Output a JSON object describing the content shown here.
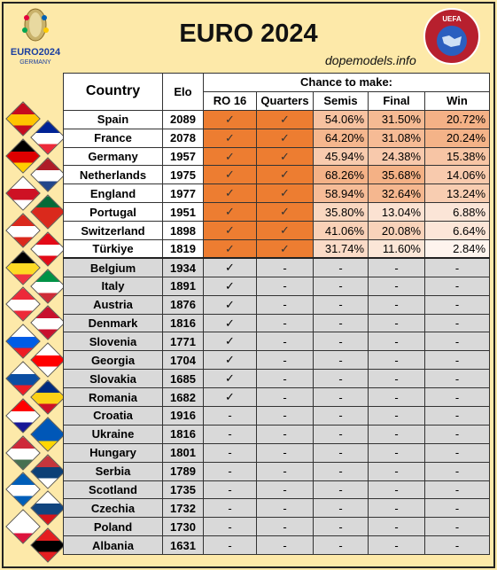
{
  "header": {
    "title": "EURO 2024",
    "site": "dopemodels.info",
    "euro_logo_text": [
      "EURO2024",
      "GERMANY"
    ],
    "uefa_logo_text": "UEFA"
  },
  "columns": {
    "country": "Country",
    "elo": "Elo",
    "group": "Chance to make:",
    "stages": [
      "RO 16",
      "Quarters",
      "Semis",
      "Final",
      "Win"
    ]
  },
  "colors": {
    "background": "#fde9a9",
    "advanced": "#ed7d31",
    "eliminated": "#d9d9d9",
    "heat_low": "#ffffff",
    "heat_high": "#f4a06a"
  },
  "chart_data": {
    "type": "table",
    "title": "EURO 2024",
    "columns": [
      "Country",
      "Elo",
      "RO 16",
      "Quarters",
      "Semis",
      "Final",
      "Win"
    ],
    "check_mark": "✓",
    "dash": "-",
    "rows": [
      {
        "country": "Spain",
        "elo": "2089",
        "ro16": "✓",
        "quarters": "✓",
        "semis": "54.06%",
        "final": "31.50%",
        "win": "20.72%",
        "status": "alive",
        "flag": [
          "#c60b1e",
          "#ffc400",
          "#c60b1e"
        ]
      },
      {
        "country": "France",
        "elo": "2078",
        "ro16": "✓",
        "quarters": "✓",
        "semis": "64.20%",
        "final": "31.08%",
        "win": "20.24%",
        "status": "alive",
        "flag": [
          "#002395",
          "#ffffff",
          "#ed2939"
        ]
      },
      {
        "country": "Germany",
        "elo": "1957",
        "ro16": "✓",
        "quarters": "✓",
        "semis": "45.94%",
        "final": "24.38%",
        "win": "15.38%",
        "status": "alive",
        "flag": [
          "#000000",
          "#dd0000",
          "#ffce00"
        ]
      },
      {
        "country": "Netherlands",
        "elo": "1975",
        "ro16": "✓",
        "quarters": "✓",
        "semis": "68.26%",
        "final": "35.68%",
        "win": "14.06%",
        "status": "alive",
        "flag": [
          "#ae1c28",
          "#ffffff",
          "#21468b"
        ]
      },
      {
        "country": "England",
        "elo": "1977",
        "ro16": "✓",
        "quarters": "✓",
        "semis": "58.94%",
        "final": "32.64%",
        "win": "13.24%",
        "status": "alive",
        "flag": [
          "#ffffff",
          "#ce1124",
          "#ffffff"
        ]
      },
      {
        "country": "Portugal",
        "elo": "1951",
        "ro16": "✓",
        "quarters": "✓",
        "semis": "35.80%",
        "final": "13.04%",
        "win": "6.88%",
        "status": "alive",
        "flag": [
          "#046a38",
          "#da291c",
          "#da291c"
        ]
      },
      {
        "country": "Switzerland",
        "elo": "1898",
        "ro16": "✓",
        "quarters": "✓",
        "semis": "41.06%",
        "final": "20.08%",
        "win": "6.64%",
        "status": "alive",
        "flag": [
          "#da291c",
          "#ffffff",
          "#da291c"
        ]
      },
      {
        "country": "Türkiye",
        "elo": "1819",
        "ro16": "✓",
        "quarters": "✓",
        "semis": "31.74%",
        "final": "11.60%",
        "win": "2.84%",
        "status": "alive",
        "flag": [
          "#e30a17",
          "#ffffff",
          "#e30a17"
        ]
      },
      {
        "country": "Belgium",
        "elo": "1934",
        "ro16": "✓",
        "quarters": "-",
        "semis": "-",
        "final": "-",
        "win": "-",
        "status": "out",
        "flag": [
          "#000000",
          "#fdda24",
          "#ef3340"
        ]
      },
      {
        "country": "Italy",
        "elo": "1891",
        "ro16": "✓",
        "quarters": "-",
        "semis": "-",
        "final": "-",
        "win": "-",
        "status": "out",
        "flag": [
          "#009246",
          "#ffffff",
          "#ce2b37"
        ]
      },
      {
        "country": "Austria",
        "elo": "1876",
        "ro16": "✓",
        "quarters": "-",
        "semis": "-",
        "final": "-",
        "win": "-",
        "status": "out",
        "flag": [
          "#ed2939",
          "#ffffff",
          "#ed2939"
        ]
      },
      {
        "country": "Denmark",
        "elo": "1816",
        "ro16": "✓",
        "quarters": "-",
        "semis": "-",
        "final": "-",
        "win": "-",
        "status": "out",
        "flag": [
          "#c8102e",
          "#ffffff",
          "#c8102e"
        ]
      },
      {
        "country": "Slovenia",
        "elo": "1771",
        "ro16": "✓",
        "quarters": "-",
        "semis": "-",
        "final": "-",
        "win": "-",
        "status": "out",
        "flag": [
          "#ffffff",
          "#005ce5",
          "#ed1c24"
        ]
      },
      {
        "country": "Georgia",
        "elo": "1704",
        "ro16": "✓",
        "quarters": "-",
        "semis": "-",
        "final": "-",
        "win": "-",
        "status": "out",
        "flag": [
          "#ffffff",
          "#ff0000",
          "#ffffff"
        ]
      },
      {
        "country": "Slovakia",
        "elo": "1685",
        "ro16": "✓",
        "quarters": "-",
        "semis": "-",
        "final": "-",
        "win": "-",
        "status": "out",
        "flag": [
          "#ffffff",
          "#0b4ea2",
          "#ee1c25"
        ]
      },
      {
        "country": "Romania",
        "elo": "1682",
        "ro16": "✓",
        "quarters": "-",
        "semis": "-",
        "final": "-",
        "win": "-",
        "status": "out",
        "flag": [
          "#002b7f",
          "#fcd116",
          "#ce1126"
        ]
      },
      {
        "country": "Croatia",
        "elo": "1916",
        "ro16": "-",
        "quarters": "-",
        "semis": "-",
        "final": "-",
        "win": "-",
        "status": "out",
        "flag": [
          "#ff0000",
          "#ffffff",
          "#171796"
        ]
      },
      {
        "country": "Ukraine",
        "elo": "1816",
        "ro16": "-",
        "quarters": "-",
        "semis": "-",
        "final": "-",
        "win": "-",
        "status": "out",
        "flag": [
          "#0057b7",
          "#0057b7",
          "#ffd700"
        ]
      },
      {
        "country": "Hungary",
        "elo": "1801",
        "ro16": "-",
        "quarters": "-",
        "semis": "-",
        "final": "-",
        "win": "-",
        "status": "out",
        "flag": [
          "#ce2939",
          "#ffffff",
          "#477050"
        ]
      },
      {
        "country": "Serbia",
        "elo": "1789",
        "ro16": "-",
        "quarters": "-",
        "semis": "-",
        "final": "-",
        "win": "-",
        "status": "out",
        "flag": [
          "#c6363c",
          "#0c4076",
          "#ffffff"
        ]
      },
      {
        "country": "Scotland",
        "elo": "1735",
        "ro16": "-",
        "quarters": "-",
        "semis": "-",
        "final": "-",
        "win": "-",
        "status": "out",
        "flag": [
          "#005eb8",
          "#ffffff",
          "#005eb8"
        ]
      },
      {
        "country": "Czechia",
        "elo": "1732",
        "ro16": "-",
        "quarters": "-",
        "semis": "-",
        "final": "-",
        "win": "-",
        "status": "out",
        "flag": [
          "#ffffff",
          "#11457e",
          "#d7141a"
        ]
      },
      {
        "country": "Poland",
        "elo": "1730",
        "ro16": "-",
        "quarters": "-",
        "semis": "-",
        "final": "-",
        "win": "-",
        "status": "out",
        "flag": [
          "#ffffff",
          "#ffffff",
          "#dc143c"
        ]
      },
      {
        "country": "Albania",
        "elo": "1631",
        "ro16": "-",
        "quarters": "-",
        "semis": "-",
        "final": "-",
        "win": "-",
        "status": "out",
        "flag": [
          "#e41e20",
          "#000000",
          "#e41e20"
        ]
      }
    ]
  }
}
